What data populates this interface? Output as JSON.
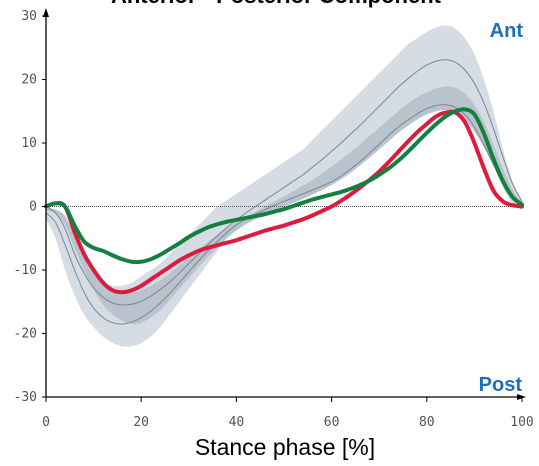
{
  "chart_data": {
    "type": "line",
    "title": "Anterior - Posterior Component",
    "xlabel": "Stance phase [%]",
    "ylabel": "",
    "xlim": [
      0,
      100
    ],
    "ylim": [
      -30,
      30
    ],
    "xticks": [
      0,
      20,
      40,
      60,
      80,
      100
    ],
    "yticks": [
      -30,
      -20,
      -10,
      0,
      10,
      20,
      30
    ],
    "xtick_labels": [
      "0",
      "20",
      "40",
      "60",
      "80",
      "100"
    ],
    "ytick_labels": [
      "-30",
      "-20",
      "-10",
      "0",
      "10",
      "20",
      "30"
    ],
    "annotations": [
      {
        "text": "Ant",
        "position": "top-right"
      },
      {
        "text": "Post",
        "position": "bottom-right"
      }
    ],
    "grid": false,
    "zero_line": true,
    "x": [
      0,
      2,
      4,
      6,
      8,
      10,
      12,
      14,
      16,
      18,
      20,
      22,
      24,
      26,
      28,
      30,
      32,
      34,
      36,
      38,
      40,
      42,
      44,
      46,
      48,
      50,
      52,
      54,
      56,
      58,
      60,
      62,
      64,
      66,
      68,
      70,
      72,
      74,
      76,
      78,
      80,
      82,
      84,
      86,
      88,
      90,
      92,
      94,
      96,
      98,
      100
    ],
    "bands": [
      {
        "color": "#d5dce4",
        "lower": [
          -2,
          -5,
          -10,
          -14,
          -17,
          -19,
          -20.5,
          -21.5,
          -22,
          -22,
          -21.5,
          -20.5,
          -19,
          -17,
          -15,
          -13,
          -11,
          -9,
          -7,
          -5,
          -3.5,
          -2.5,
          -1.5,
          -0.5,
          0.3,
          1,
          1.5,
          2,
          2.5,
          3,
          3.5,
          4.5,
          6,
          7.5,
          9,
          10.5,
          12,
          13.5,
          14.5,
          15.5,
          16.5,
          17,
          17,
          16.5,
          15,
          13,
          10,
          6.5,
          3,
          0.5,
          -0.5
        ],
        "upper": [
          0,
          -1,
          -3,
          -6,
          -9,
          -11,
          -12,
          -12.5,
          -12.5,
          -12,
          -11,
          -10,
          -9,
          -7.5,
          -6,
          -4.5,
          -3,
          -1.5,
          0,
          1,
          2,
          3,
          4,
          5,
          6,
          7,
          8,
          9,
          10.5,
          12,
          13.5,
          15,
          16.5,
          18,
          19.5,
          21,
          22.5,
          24,
          25.5,
          26.5,
          27.5,
          28.2,
          28.5,
          28,
          26.5,
          24,
          20,
          15,
          9,
          4,
          1
        ]
      },
      {
        "color": "#b9c3ce",
        "lower": [
          -0.6,
          -1.2,
          -3,
          -6.5,
          -10,
          -13,
          -15.5,
          -17,
          -18,
          -18.5,
          -18.3,
          -17.5,
          -16.3,
          -14.7,
          -13,
          -11.3,
          -9.6,
          -8,
          -6.5,
          -5,
          -3.8,
          -2.8,
          -2,
          -1.3,
          -0.6,
          0,
          0.6,
          1.2,
          1.9,
          2.6,
          3.4,
          4.3,
          5.3,
          6.5,
          7.7,
          9,
          10.3,
          11.6,
          12.7,
          13.7,
          14.5,
          15,
          15.2,
          14.8,
          13.7,
          11.8,
          9.3,
          6.5,
          3.7,
          1.5,
          0.2
        ],
        "upper": [
          -0.2,
          -0.5,
          -1.5,
          -4.5,
          -7.5,
          -10,
          -12,
          -13,
          -13.5,
          -13.6,
          -13.2,
          -12.5,
          -11.6,
          -10.5,
          -9.3,
          -8,
          -6.8,
          -5.6,
          -4.4,
          -3.4,
          -2.4,
          -1.6,
          -0.8,
          0,
          0.8,
          1.6,
          2.4,
          3.3,
          4.2,
          5.2,
          6.3,
          7.4,
          8.6,
          9.8,
          11.1,
          12.4,
          13.7,
          15,
          16.2,
          17.2,
          18,
          18.6,
          18.9,
          18.7,
          17.8,
          16,
          13.3,
          9.8,
          6,
          2.7,
          0.6
        ]
      }
    ],
    "series": [
      {
        "color": "#7a8694",
        "values": [
          -1,
          -2.5,
          -6,
          -10,
          -13.5,
          -16,
          -17.5,
          -18.3,
          -18.5,
          -18.2,
          -17.5,
          -16.5,
          -15.2,
          -13.7,
          -12,
          -10.3,
          -8.6,
          -7,
          -5.5,
          -4.1,
          -2.9,
          -2,
          -1.2,
          -0.5,
          0.2,
          0.8,
          1.4,
          2,
          2.6,
          3.2,
          3.9,
          4.8,
          5.9,
          7.1,
          8.4,
          9.8,
          11.2,
          12.5,
          13.6,
          14.6,
          15.4,
          15.9,
          16,
          15.6,
          14.5,
          12.5,
          9.8,
          6.6,
          3.5,
          1.2,
          0
        ],
        "width": 1
      },
      {
        "color": "#7a8694",
        "values": [
          0,
          -1,
          -3.5,
          -7.5,
          -10.5,
          -12.8,
          -14.3,
          -15.2,
          -15.5,
          -15.4,
          -14.9,
          -14.1,
          -13.1,
          -11.9,
          -10.5,
          -9,
          -7.5,
          -6,
          -4.6,
          -3.3,
          -2.1,
          -1,
          0,
          1,
          2,
          3,
          4,
          5,
          6.2,
          7.4,
          8.7,
          10,
          11.4,
          12.8,
          14.3,
          15.8,
          17.3,
          18.8,
          20.1,
          21.3,
          22.3,
          22.9,
          23.1,
          22.7,
          21.5,
          19.4,
          16.3,
          12.3,
          7.8,
          3.6,
          0.8
        ],
        "width": 1
      },
      {
        "color": "#dc1c3c",
        "values": [
          0,
          0.5,
          0,
          -4,
          -7.5,
          -10,
          -12,
          -13.2,
          -13.5,
          -13.2,
          -12.5,
          -11.5,
          -10.5,
          -9.5,
          -8.5,
          -7.7,
          -7,
          -6.5,
          -6.1,
          -5.7,
          -5.3,
          -4.8,
          -4.3,
          -3.8,
          -3.4,
          -3,
          -2.5,
          -2,
          -1.4,
          -0.7,
          0,
          0.9,
          1.9,
          3,
          4.2,
          5.5,
          7,
          8.6,
          10.2,
          11.7,
          13,
          14.2,
          14.8,
          14.8,
          13.3,
          10,
          6,
          2.5,
          0.8,
          0.2,
          0
        ],
        "width": 4
      },
      {
        "color": "#148040",
        "values": [
          0,
          0.5,
          0,
          -3,
          -5.5,
          -6.5,
          -7,
          -7.7,
          -8.3,
          -8.7,
          -8.7,
          -8.3,
          -7.6,
          -6.7,
          -5.8,
          -4.8,
          -4,
          -3.3,
          -2.8,
          -2.4,
          -2.1,
          -1.8,
          -1.5,
          -1.2,
          -0.8,
          -0.4,
          0.1,
          0.6,
          1.1,
          1.5,
          1.9,
          2.3,
          2.8,
          3.4,
          4.1,
          5,
          6,
          7.2,
          8.6,
          10.1,
          11.6,
          13,
          14.2,
          15,
          15.3,
          14.5,
          11.5,
          7.5,
          4,
          1.5,
          0.3
        ],
        "width": 4
      }
    ]
  }
}
